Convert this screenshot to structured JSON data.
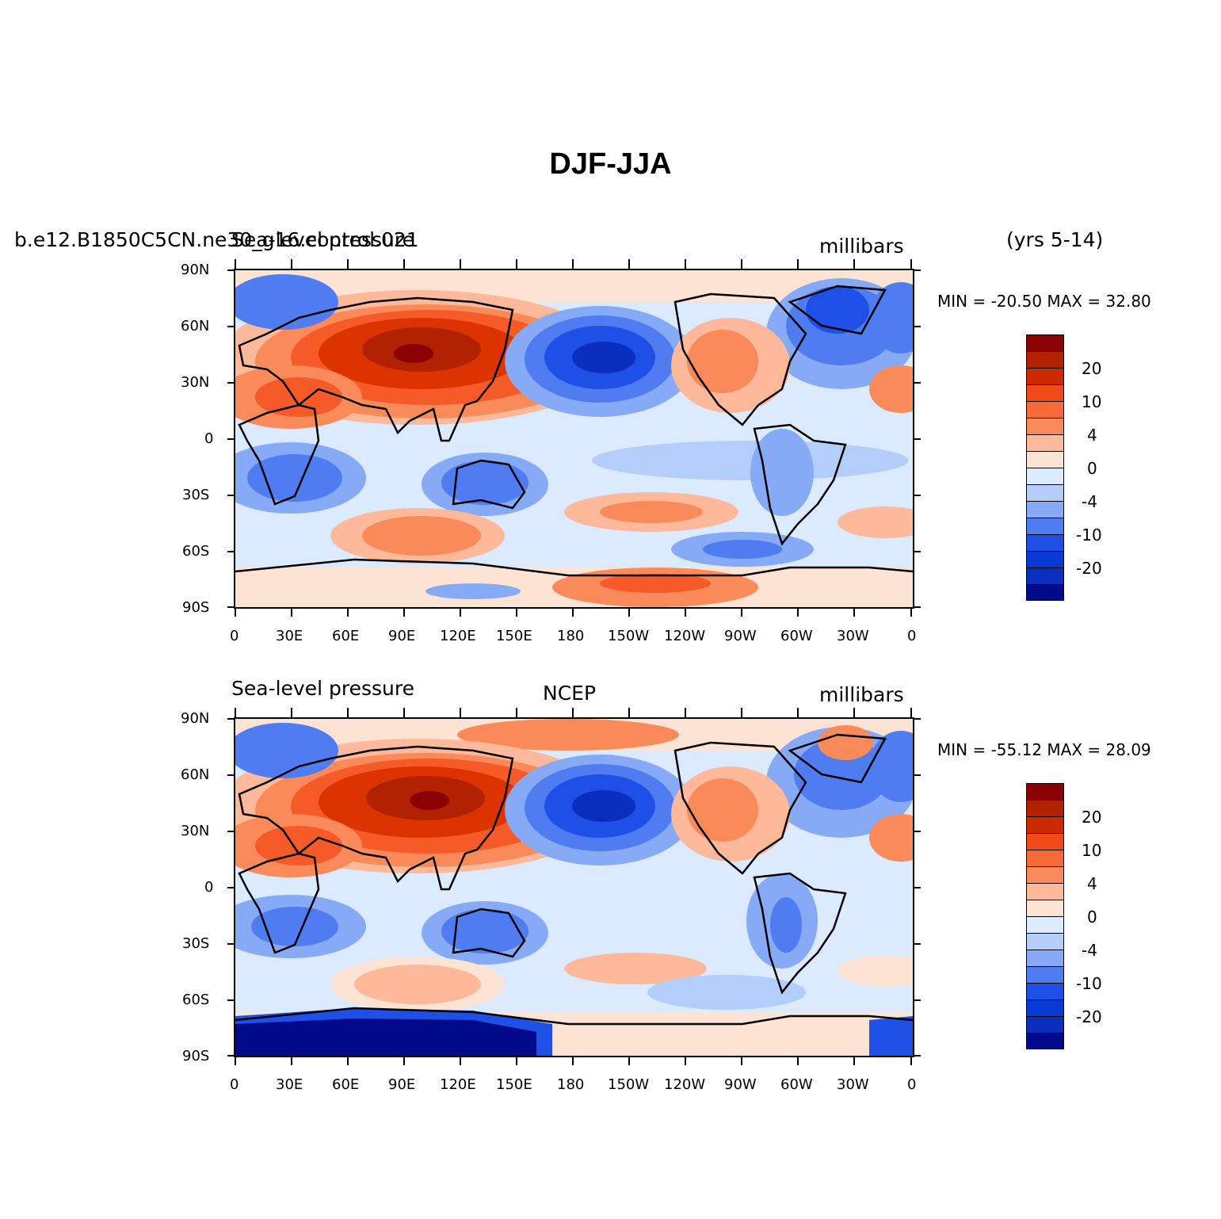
{
  "figure": {
    "title": "DJF-JJA"
  },
  "panels": [
    {
      "left_label": "b.e12.B1850C5CN.ne30_g16.control.021",
      "left_label_overlap": "Sea-level pressure",
      "center_label": "",
      "right_label": "millibars",
      "years_label": "(yrs 5-14)",
      "min_max": "MIN = -20.50  MAX =  32.80",
      "y_ticks": [
        "90N",
        "60N",
        "30N",
        "0",
        "30S",
        "60S",
        "90S"
      ],
      "x_ticks": [
        "0",
        "30E",
        "60E",
        "90E",
        "120E",
        "150E",
        "180",
        "150W",
        "120W",
        "90W",
        "60W",
        "30W",
        "0"
      ]
    },
    {
      "left_label": "Sea-level pressure",
      "center_label": "NCEP",
      "right_label": "millibars",
      "min_max": "MIN = -55.12  MAX =  28.09",
      "y_ticks": [
        "90N",
        "60N",
        "30N",
        "0",
        "30S",
        "60S",
        "90S"
      ],
      "x_ticks": [
        "0",
        "30E",
        "60E",
        "90E",
        "120E",
        "150E",
        "180",
        "150W",
        "120W",
        "90W",
        "60W",
        "30W",
        "0"
      ]
    }
  ],
  "colorbar": {
    "labels": [
      "20",
      "10",
      "4",
      "0",
      "-4",
      "-10",
      "-20"
    ],
    "colors": [
      "#8b0000",
      "#b22200",
      "#dd3300",
      "#f65a28",
      "#fb8a5a",
      "#fdb99a",
      "#fde3d4",
      "#dbeafe",
      "#b4cefb",
      "#86aaf5",
      "#4f7cf0",
      "#1e4fe6",
      "#0a2fbf",
      "#000a8a"
    ]
  },
  "chart_data": {
    "type": "heatmap",
    "map": "global sea-level pressure difference",
    "x_range": [
      0,
      360
    ],
    "y_range": [
      -90,
      90
    ],
    "contour_levels": [
      -20,
      -10,
      -4,
      0,
      4,
      10,
      20
    ],
    "panels": [
      {
        "source": "b.e12.B1850C5CN.ne30_g16.control.021",
        "min": -20.5,
        "max": 32.8
      },
      {
        "source": "NCEP",
        "min": -55.12,
        "max": 28.09
      }
    ]
  }
}
